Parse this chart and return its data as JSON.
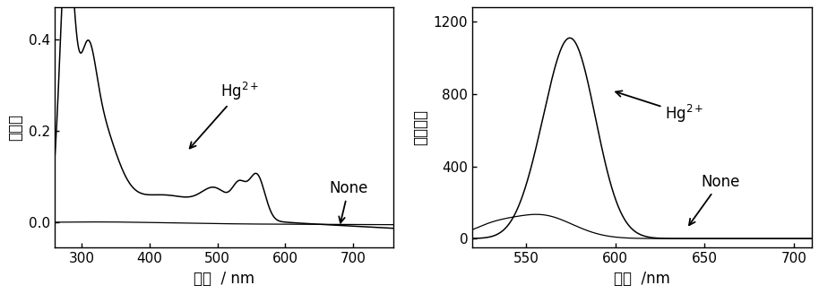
{
  "left": {
    "xlim": [
      260,
      760
    ],
    "ylim": [
      -0.055,
      0.47
    ],
    "xticks": [
      300,
      400,
      500,
      600,
      700
    ],
    "yticks": [
      0.0,
      0.2,
      0.4
    ],
    "xlabel": "波长  / nm",
    "ylabel": "吸光度",
    "hg_label": "Hg$^{2+}$",
    "none_label": "None"
  },
  "right": {
    "xlim": [
      520,
      710
    ],
    "ylim": [
      -50,
      1280
    ],
    "xticks": [
      550,
      600,
      650,
      700
    ],
    "yticks": [
      0,
      400,
      800,
      1200
    ],
    "xlabel": "波长  /nm",
    "ylabel": "荧光强度",
    "hg_label": "Hg$^{2+}$",
    "none_label": "None"
  },
  "line_color": "#000000",
  "bg_color": "#ffffff",
  "fontsize_tick": 11,
  "fontsize_label": 12,
  "fontsize_annot": 12
}
